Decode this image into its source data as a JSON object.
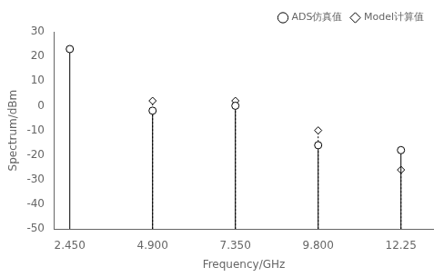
{
  "chart_data": {
    "type": "stem",
    "x": [
      2.45,
      4.9,
      7.35,
      9.8,
      12.25
    ],
    "series": [
      {
        "name": "ADS仿真值",
        "color": "#000000",
        "values": [
          23,
          -2,
          0,
          -16,
          -18
        ],
        "line_style": "solid",
        "marker": "circle"
      },
      {
        "name": "Model计算值",
        "color": "#000000",
        "values": [
          null,
          2,
          2,
          -10,
          -26
        ],
        "line_style": "dotted",
        "marker": "diamond"
      }
    ],
    "xlabel": "Frequency/GHz",
    "ylabel": "Spectrum/dBm",
    "xlim": [
      2.0,
      13.2
    ],
    "xticks": [
      {
        "value": 2.45,
        "label": "2.450"
      },
      {
        "value": 4.9,
        "label": "4.900"
      },
      {
        "value": 7.35,
        "label": "7.350"
      },
      {
        "value": 9.8,
        "label": "9.800"
      },
      12.25
    ],
    "ylim": [
      -50,
      30
    ],
    "yticks": [
      -50,
      -40,
      -30,
      -20,
      -10,
      0,
      10,
      20,
      30
    ],
    "grid": false,
    "legend": "upper right"
  }
}
